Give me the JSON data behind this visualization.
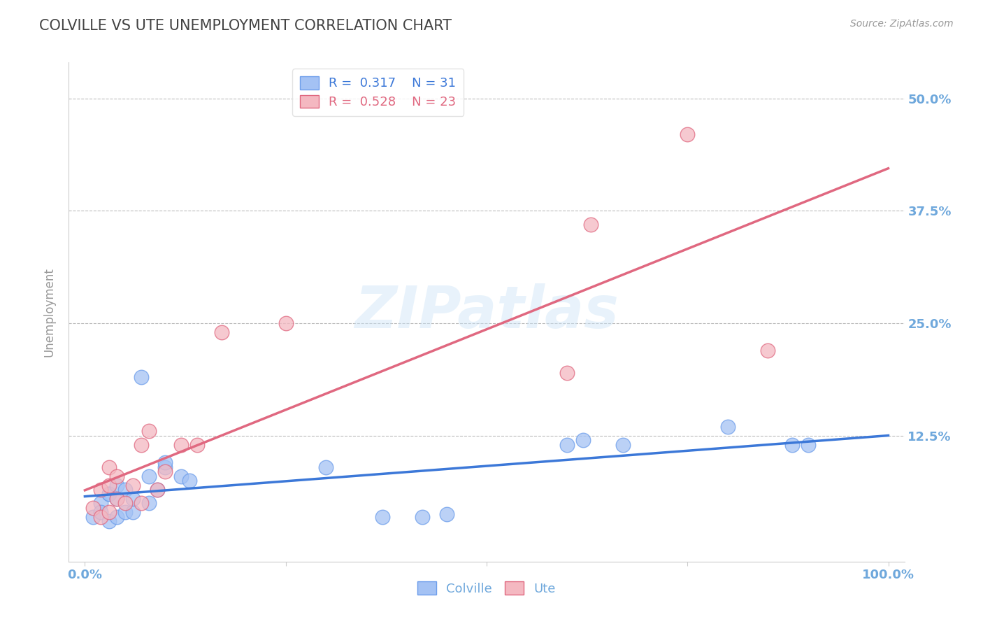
{
  "title": "COLVILLE VS UTE UNEMPLOYMENT CORRELATION CHART",
  "source": "Source: ZipAtlas.com",
  "ylabel": "Unemployment",
  "xlim": [
    -0.02,
    1.02
  ],
  "ylim": [
    -0.015,
    0.54
  ],
  "ytick_positions": [
    0.125,
    0.25,
    0.375,
    0.5
  ],
  "ytick_labels": [
    "12.5%",
    "25.0%",
    "37.5%",
    "50.0%"
  ],
  "colville_color": "#a4c2f4",
  "ute_color": "#f4b8c1",
  "colville_edge_color": "#6d9eeb",
  "ute_edge_color": "#e06880",
  "colville_line_color": "#3c78d8",
  "ute_line_color": "#e06880",
  "colville_R": 0.317,
  "colville_N": 31,
  "ute_R": 0.528,
  "ute_N": 23,
  "background_color": "#ffffff",
  "grid_color": "#bbbbbb",
  "title_color": "#434343",
  "axis_label_color": "#6fa8dc",
  "colville_x": [
    0.01,
    0.02,
    0.02,
    0.03,
    0.03,
    0.03,
    0.04,
    0.04,
    0.04,
    0.05,
    0.05,
    0.06,
    0.06,
    0.07,
    0.08,
    0.08,
    0.09,
    0.1,
    0.1,
    0.12,
    0.13,
    0.3,
    0.37,
    0.42,
    0.45,
    0.6,
    0.62,
    0.67,
    0.8,
    0.88,
    0.9
  ],
  "colville_y": [
    0.035,
    0.05,
    0.04,
    0.03,
    0.06,
    0.06,
    0.035,
    0.055,
    0.07,
    0.04,
    0.065,
    0.04,
    0.055,
    0.19,
    0.05,
    0.08,
    0.065,
    0.09,
    0.095,
    0.08,
    0.075,
    0.09,
    0.035,
    0.035,
    0.038,
    0.115,
    0.12,
    0.115,
    0.135,
    0.115,
    0.115
  ],
  "ute_x": [
    0.01,
    0.02,
    0.02,
    0.03,
    0.03,
    0.03,
    0.04,
    0.04,
    0.05,
    0.06,
    0.07,
    0.07,
    0.08,
    0.09,
    0.1,
    0.12,
    0.14,
    0.17,
    0.25,
    0.6,
    0.63,
    0.75,
    0.85
  ],
  "ute_y": [
    0.045,
    0.035,
    0.065,
    0.04,
    0.07,
    0.09,
    0.055,
    0.08,
    0.05,
    0.07,
    0.05,
    0.115,
    0.13,
    0.065,
    0.085,
    0.115,
    0.115,
    0.24,
    0.25,
    0.195,
    0.36,
    0.46,
    0.22
  ]
}
